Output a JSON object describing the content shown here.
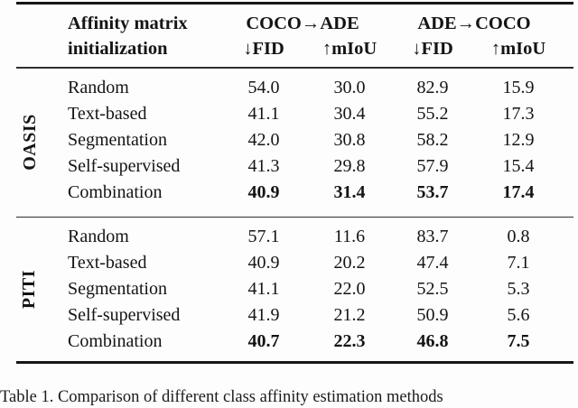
{
  "table": {
    "header": {
      "title_line1": "Affinity matrix",
      "title_line2": "initialization",
      "groups": [
        {
          "label": "COCO→ADE"
        },
        {
          "label": "ADE→COCO"
        }
      ],
      "subheaders": [
        "↓FID",
        "↑mIoU",
        "↓FID",
        "↑mIoU"
      ]
    },
    "blocks": [
      {
        "group": "OASIS",
        "rows": [
          {
            "label": "Random",
            "values": [
              "54.0",
              "30.0",
              "82.9",
              "15.9"
            ],
            "bold": false
          },
          {
            "label": "Text-based",
            "values": [
              "41.1",
              "30.4",
              "55.2",
              "17.3"
            ],
            "bold": false
          },
          {
            "label": "Segmentation",
            "values": [
              "42.0",
              "30.8",
              "58.2",
              "12.9"
            ],
            "bold": false
          },
          {
            "label": "Self-supervised",
            "values": [
              "41.3",
              "29.8",
              "57.9",
              "15.4"
            ],
            "bold": false
          },
          {
            "label": "Combination",
            "values": [
              "40.9",
              "31.4",
              "53.7",
              "17.4"
            ],
            "bold": true
          }
        ]
      },
      {
        "group": "PITI",
        "rows": [
          {
            "label": "Random",
            "values": [
              "57.1",
              "11.6",
              "83.7",
              "0.8"
            ],
            "bold": false
          },
          {
            "label": "Text-based",
            "values": [
              "40.9",
              "20.2",
              "47.4",
              "7.1"
            ],
            "bold": false
          },
          {
            "label": "Segmentation",
            "values": [
              "41.1",
              "22.0",
              "52.5",
              "5.3"
            ],
            "bold": false
          },
          {
            "label": "Self-supervised",
            "values": [
              "41.9",
              "21.2",
              "50.9",
              "5.6"
            ],
            "bold": false
          },
          {
            "label": "Combination",
            "values": [
              "40.7",
              "22.3",
              "46.8",
              "7.5"
            ],
            "bold": true
          }
        ]
      }
    ],
    "caption": "Table 1. Comparison of different class affinity estimation methods"
  }
}
